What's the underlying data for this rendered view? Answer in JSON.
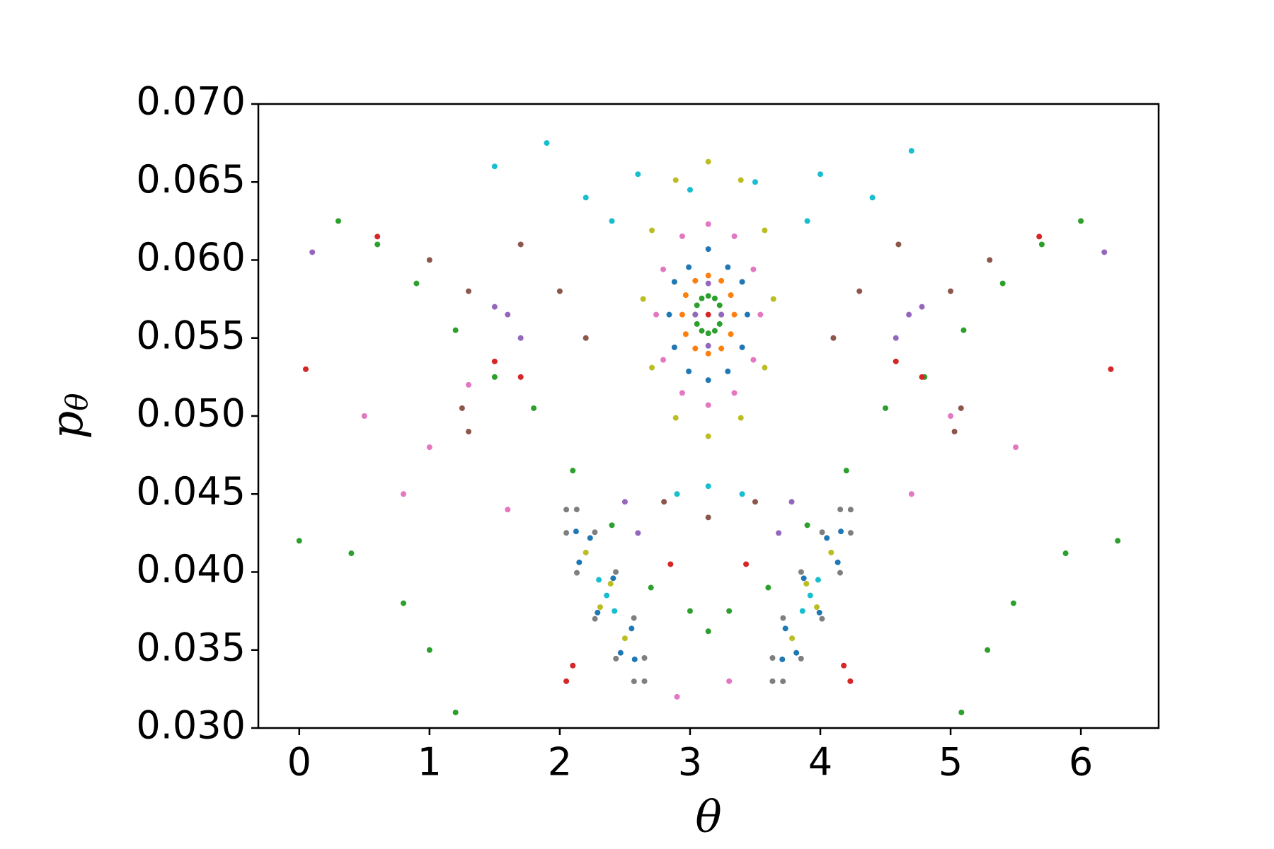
{
  "chart_data": {
    "type": "scatter",
    "xlabel": "θ",
    "ylabel": {
      "base": "p",
      "subscript": "θ"
    },
    "xlim": [
      -0.314,
      6.597
    ],
    "ylim": [
      0.03,
      0.07
    ],
    "xticks": [
      0,
      1,
      2,
      3,
      4,
      5,
      6
    ],
    "yticks": [
      {
        "value": 0.03,
        "label": "0.030"
      },
      0.035,
      {
        "value": 0.04,
        "label": "0.040"
      },
      0.045,
      {
        "value": 0.05,
        "label": "0.050"
      },
      0.055,
      {
        "value": 0.06,
        "label": "0.060"
      },
      0.065,
      {
        "value": 0.07,
        "label": "0.070"
      }
    ],
    "series": [
      {
        "color": "#2ca02c",
        "x": [
          3.24,
          3.227,
          3.19,
          3.14,
          3.09,
          3.053,
          3.04,
          3.053,
          3.09,
          3.14,
          3.19,
          3.227,
          0.3,
          0.6,
          0.9,
          1.2,
          1.5,
          1.8,
          2.1,
          2.4,
          2.7,
          3.0,
          3.14,
          3.3,
          3.6,
          3.9,
          4.2,
          4.5,
          4.8,
          5.1,
          5.4,
          5.7,
          6.0,
          0,
          0.4,
          0.8,
          1.0,
          1.2,
          6.283,
          5.883,
          5.483,
          5.283,
          5.083
        ],
        "y": [
          0.0565,
          0.0571,
          0.05754,
          0.0577,
          0.05754,
          0.0571,
          0.0565,
          0.0559,
          0.05546,
          0.0553,
          0.05546,
          0.0559,
          0.0625,
          0.061,
          0.0585,
          0.0555,
          0.0525,
          0.0505,
          0.0465,
          0.043,
          0.039,
          0.0375,
          0.0362,
          0.0375,
          0.039,
          0.043,
          0.0465,
          0.0505,
          0.0525,
          0.0555,
          0.0585,
          0.061,
          0.0625,
          0.042,
          0.0412,
          0.038,
          0.035,
          0.031,
          0.042,
          0.0412,
          0.038,
          0.035,
          0.031
        ]
      },
      {
        "color": "#ff7f0e",
        "x": [
          3.34,
          3.313,
          3.24,
          3.14,
          3.04,
          2.967,
          2.94,
          2.967,
          3.04,
          3.14,
          3.24,
          3.313
        ],
        "y": [
          0.0565,
          0.05775,
          0.05867,
          0.059,
          0.05867,
          0.05775,
          0.0565,
          0.05525,
          0.05433,
          0.054,
          0.05433,
          0.05525
        ]
      },
      {
        "color": "#1f77b4",
        "x": [
          3.44,
          3.4,
          3.29,
          3.14,
          2.99,
          2.88,
          2.84,
          2.88,
          2.99,
          3.14,
          3.29,
          3.4,
          2.575,
          2.551,
          2.41,
          2.233,
          2.125,
          2.149,
          2.29,
          2.467,
          3.708,
          3.732,
          3.873,
          4.05,
          4.158,
          4.134,
          3.993,
          3.816
        ],
        "y": [
          0.0565,
          0.0586,
          0.05954,
          0.0607,
          0.05954,
          0.0586,
          0.0565,
          0.0544,
          0.05286,
          0.0523,
          0.05286,
          0.0544,
          0.0344,
          0.03638,
          0.0396,
          0.04218,
          0.0426,
          0.04062,
          0.0374,
          0.03482,
          0.0344,
          0.03638,
          0.0396,
          0.04218,
          0.0426,
          0.04062,
          0.0374,
          0.03482
        ]
      },
      {
        "color": "#e377c2",
        "x": [
          3.54,
          3.486,
          3.34,
          3.14,
          2.94,
          2.794,
          2.74,
          2.794,
          2.94,
          3.14,
          3.34,
          3.486,
          0.5,
          1.0,
          1.3,
          0.8,
          1.6,
          2.9,
          3.3,
          5.0,
          5.5,
          4.7
        ],
        "y": [
          0.0565,
          0.0594,
          0.06152,
          0.0623,
          0.06152,
          0.0594,
          0.0565,
          0.0536,
          0.05148,
          0.0507,
          0.05148,
          0.0536,
          0.05,
          0.048,
          0.052,
          0.045,
          0.044,
          0.032,
          0.033,
          0.05,
          0.048,
          0.045
        ]
      },
      {
        "color": "#bcbd22",
        "x": [
          3.64,
          3.573,
          3.39,
          3.14,
          2.89,
          2.707,
          2.64,
          2.707,
          2.89,
          3.14,
          3.39,
          3.573,
          2.5,
          2.39,
          2.2,
          2.31,
          3.783,
          3.893,
          4.083,
          3.973
        ],
        "y": [
          0.0575,
          0.0619,
          0.06512,
          0.0663,
          0.06512,
          0.0619,
          0.0575,
          0.0531,
          0.04988,
          0.0487,
          0.04988,
          0.0531,
          0.03575,
          0.03925,
          0.04125,
          0.03775,
          0.03575,
          0.03925,
          0.04125,
          0.03775
        ]
      },
      {
        "color": "#7f7f7f",
        "x": [
          2.65,
          2.65,
          2.569,
          2.43,
          2.269,
          2.13,
          2.05,
          2.05,
          2.131,
          2.27,
          2.431,
          2.57,
          3.633,
          3.633,
          3.714,
          3.853,
          4.014,
          4.153,
          4.233,
          4.233,
          4.152,
          4.013,
          3.852,
          3.713
        ],
        "y": [
          0.033,
          0.03449,
          0.03705,
          0.04,
          0.04255,
          0.04401,
          0.044,
          0.04251,
          0.03995,
          0.037,
          0.03445,
          0.03299,
          0.033,
          0.03449,
          0.03705,
          0.04,
          0.04255,
          0.04401,
          0.044,
          0.04251,
          0.03995,
          0.037,
          0.03445,
          0.03299
        ]
      },
      {
        "color": "#17becf",
        "x": [
          1.5,
          1.9,
          2.2,
          2.6,
          3.0,
          3.5,
          4.0,
          4.4,
          4.7,
          2.4,
          3.9,
          3.14,
          2.9,
          3.4,
          2.36,
          2.3,
          2.42,
          3.923,
          3.983,
          3.863
        ],
        "y": [
          0.066,
          0.0675,
          0.064,
          0.0655,
          0.0645,
          0.065,
          0.0655,
          0.064,
          0.067,
          0.0625,
          0.0625,
          0.0455,
          0.045,
          0.045,
          0.0385,
          0.0395,
          0.0375,
          0.0385,
          0.0395,
          0.0375
        ]
      },
      {
        "color": "#8c564b",
        "x": [
          1.0,
          1.3,
          1.7,
          2.0,
          2.2,
          4.1,
          4.3,
          4.6,
          5.0,
          5.3,
          2.8,
          3.14,
          3.5,
          1.3,
          1.25,
          5.03,
          5.08
        ],
        "y": [
          0.06,
          0.058,
          0.061,
          0.058,
          0.055,
          0.055,
          0.058,
          0.061,
          0.058,
          0.06,
          0.0445,
          0.0435,
          0.0445,
          0.049,
          0.0505,
          0.049,
          0.0505
        ]
      },
      {
        "color": "#d62728",
        "x": [
          3.14,
          0.05,
          6.23,
          1.5,
          1.7,
          4.58,
          4.78,
          2.1,
          2.05,
          4.18,
          4.23,
          2.85,
          3.43,
          0.6,
          5.68
        ],
        "y": [
          0.0565,
          0.053,
          0.053,
          0.0535,
          0.0525,
          0.0535,
          0.0525,
          0.034,
          0.033,
          0.034,
          0.033,
          0.0405,
          0.0405,
          0.0615,
          0.0615
        ]
      },
      {
        "color": "#9467bd",
        "x": [
          3.14,
          3.24,
          3.14,
          3.04,
          1.6,
          1.5,
          1.7,
          4.68,
          4.78,
          4.58,
          2.5,
          2.6,
          3.78,
          3.68,
          0.1,
          6.18
        ],
        "y": [
          0.0585,
          0.0565,
          0.0545,
          0.0565,
          0.0565,
          0.057,
          0.055,
          0.0565,
          0.057,
          0.055,
          0.0445,
          0.0425,
          0.0445,
          0.0425,
          0.0605,
          0.0605
        ]
      }
    ]
  }
}
